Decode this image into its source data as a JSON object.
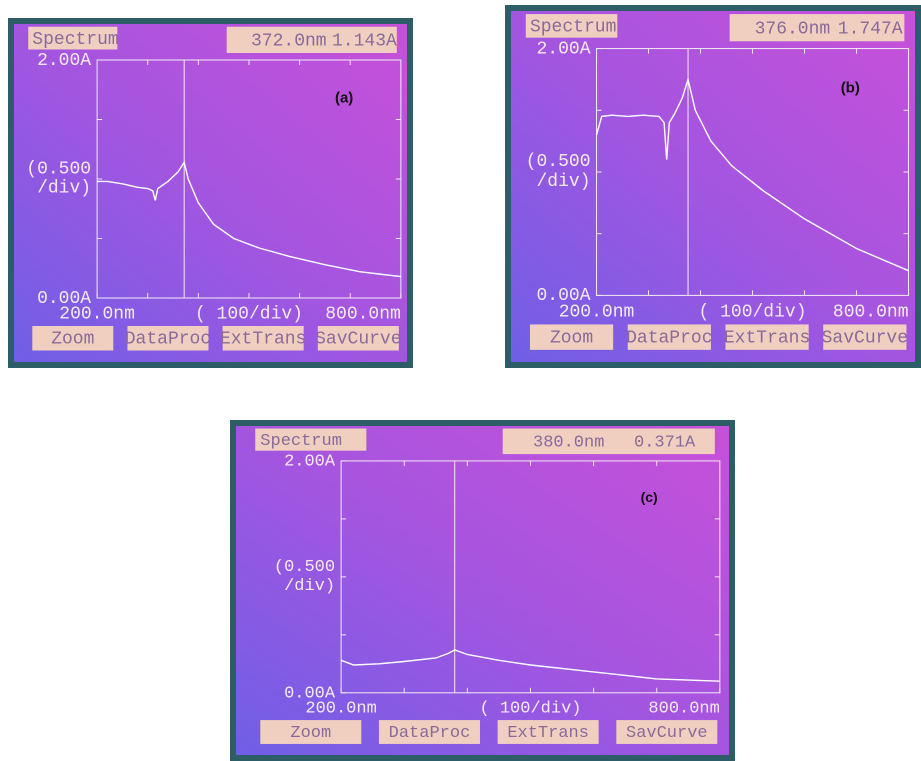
{
  "chart_data": [
    {
      "type": "line",
      "title": "Spectrum",
      "panel_label": "(a)",
      "readout": {
        "x": {
          "value": 372,
          "label": "372.0nm"
        },
        "y": {
          "value": 1.143,
          "label": "1.143A"
        }
      },
      "x": [
        200,
        220,
        250,
        280,
        300,
        310,
        315,
        320,
        340,
        360,
        372,
        380,
        400,
        430,
        470,
        520,
        580,
        650,
        720,
        800
      ],
      "values": [
        0.98,
        0.98,
        0.96,
        0.93,
        0.92,
        0.9,
        0.82,
        0.92,
        0.98,
        1.06,
        1.14,
        1.0,
        0.8,
        0.62,
        0.5,
        0.42,
        0.35,
        0.28,
        0.22,
        0.18
      ],
      "color": "#ffffff",
      "xlim": [
        200,
        800
      ],
      "xticks": [
        {
          "value": 200,
          "label": "200.0nm"
        },
        {
          "value": 800,
          "label": "800.0nm"
        }
      ],
      "minor_xticks": [
        300,
        400,
        500,
        600,
        700
      ],
      "xlabel": "( 100/div)",
      "ylim": [
        0,
        2
      ],
      "yticks": [
        {
          "value": 2,
          "label": "2.00A"
        },
        {
          "value": 0,
          "label": "0.00A"
        }
      ],
      "minor_yticks": [
        0.5,
        1,
        1.5
      ],
      "ylabel": [
        "(0.500",
        "/div)"
      ],
      "buttons": [
        "Zoom",
        "DataProc",
        "ExtTrans",
        "SavCurve"
      ]
    },
    {
      "type": "line",
      "title": "Spectrum",
      "panel_label": "(b)",
      "readout": {
        "x": {
          "value": 376,
          "label": "376.0nm"
        },
        "y": {
          "value": 1.747,
          "label": "1.747A"
        }
      },
      "x": [
        200,
        210,
        230,
        260,
        290,
        320,
        330,
        335,
        340,
        350,
        365,
        376,
        390,
        420,
        460,
        520,
        600,
        700,
        800
      ],
      "values": [
        1.3,
        1.45,
        1.46,
        1.45,
        1.46,
        1.45,
        1.4,
        1.1,
        1.4,
        1.47,
        1.6,
        1.75,
        1.5,
        1.25,
        1.05,
        0.85,
        0.62,
        0.38,
        0.2
      ],
      "color": "#ffffff",
      "xlim": [
        200,
        800
      ],
      "xticks": [
        {
          "value": 200,
          "label": "200.0nm"
        },
        {
          "value": 800,
          "label": "800.0nm"
        }
      ],
      "minor_xticks": [
        300,
        400,
        500,
        600,
        700
      ],
      "xlabel": "( 100/div)",
      "ylim": [
        0,
        2
      ],
      "yticks": [
        {
          "value": 2,
          "label": "2.00A"
        },
        {
          "value": 0,
          "label": "0.00A"
        }
      ],
      "minor_yticks": [
        0.5,
        1,
        1.5
      ],
      "ylabel": [
        "(0.500",
        "/div)"
      ],
      "buttons": [
        "Zoom",
        "DataProc",
        "ExtTrans",
        "SavCurve"
      ]
    },
    {
      "type": "line",
      "title": "Spectrum",
      "panel_label": "(c)",
      "readout": {
        "x": {
          "value": 380,
          "label": "380.0nm"
        },
        "y": {
          "value": 0.371,
          "label": "0.371A"
        }
      },
      "x": [
        200,
        220,
        260,
        300,
        350,
        370,
        380,
        400,
        450,
        500,
        600,
        700,
        800
      ],
      "values": [
        0.28,
        0.24,
        0.25,
        0.27,
        0.3,
        0.34,
        0.37,
        0.33,
        0.28,
        0.24,
        0.18,
        0.12,
        0.1
      ],
      "color": "#ffffff",
      "xlim": [
        200,
        800
      ],
      "xticks": [
        {
          "value": 200,
          "label": "200.0nm"
        },
        {
          "value": 800,
          "label": "800.0nm"
        }
      ],
      "minor_xticks": [
        300,
        400,
        500,
        600,
        700
      ],
      "xlabel": "( 100/div)",
      "ylim": [
        0,
        2
      ],
      "yticks": [
        {
          "value": 2,
          "label": "2.00A"
        },
        {
          "value": 0,
          "label": "0.00A"
        }
      ],
      "minor_yticks": [
        0.5,
        1,
        1.5
      ],
      "ylabel": [
        "(0.500",
        "/div)"
      ],
      "buttons": [
        "Zoom",
        "DataProc",
        "ExtTrans",
        "SavCurve"
      ]
    }
  ]
}
